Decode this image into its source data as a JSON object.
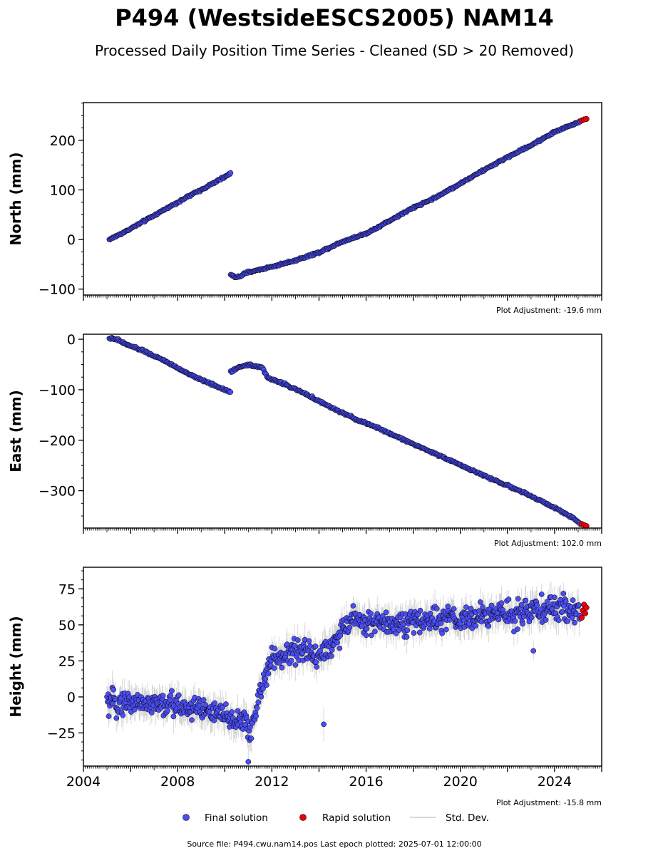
{
  "title": "P494 (WestsideESCS2005) NAM14",
  "subtitle": "Processed Daily Position Time Series - Cleaned (SD > 20 Removed)",
  "footer": "Source file: P494.cwu.nam14.pos  Last epoch plotted: 2025-07-01 12:00:00",
  "legend": {
    "final_label": "Final solution",
    "rapid_label": "Rapid solution",
    "std_label": "Std. Dev."
  },
  "colors": {
    "final_fill": "#4b4df2",
    "rapid_fill": "#e8000b",
    "std_dev": "#b8b8b8",
    "marker_edge": "#000000"
  },
  "chart_data": [
    {
      "type": "scatter",
      "ylabel": "North (mm)",
      "adjustment_note": "Plot Adjustment: -19.6 mm",
      "xlim": [
        2004,
        2026
      ],
      "ylim": [
        -112,
        276
      ],
      "yticks": [
        -100,
        0,
        100,
        200
      ],
      "ytick_labels": [
        "−100",
        "0",
        "100",
        "200"
      ],
      "series": [
        {
          "segments": [
            {
              "x": [
                2005.1,
                2005.7,
                2006.5,
                2007.5,
                2008.5,
                2009.5,
                2010.25
              ],
              "y": [
                0,
                14,
                35,
                62,
                88,
                113,
                133
              ]
            },
            {
              "x": [
                2010.25,
                2010.5,
                2011.0,
                2012.0,
                2013.0,
                2014.0,
                2015.0,
                2016.0,
                2017.0,
                2018.0,
                2019.0,
                2020.0,
                2021.0,
                2022.0,
                2023.0,
                2024.0,
                2025.1
              ],
              "y": [
                -70,
                -77,
                -66,
                -55,
                -42,
                -26,
                -4,
                12,
                38,
                64,
                86,
                113,
                140,
                166,
                190,
                217,
                238
              ]
            }
          ]
        },
        {
          "x": [
            2025.15,
            2025.25,
            2025.35
          ],
          "y": [
            240,
            242,
            243
          ]
        }
      ]
    },
    {
      "type": "scatter",
      "ylabel": "East (mm)",
      "adjustment_note": "Plot Adjustment: 102.0 mm",
      "xlim": [
        2004,
        2026
      ],
      "ylim": [
        -374,
        10
      ],
      "yticks": [
        -300,
        -200,
        -100,
        0
      ],
      "ytick_labels": [
        "−300",
        "−200",
        "−100",
        "0"
      ],
      "series": [
        {
          "segments": [
            {
              "x": [
                2005.1,
                2005.5,
                2005.8,
                2006.5,
                2007.5,
                2008.5,
                2009.5,
                2010.25
              ],
              "y": [
                2,
                -2,
                -10,
                -22,
                -44,
                -70,
                -90,
                -105
              ]
            },
            {
              "x": [
                2010.25,
                2010.6,
                2011.0,
                2011.6,
                2011.8,
                2012.5,
                2013.5,
                2014.5,
                2015.5,
                2016.5,
                2017.5,
                2018.5,
                2019.5,
                2020.5,
                2021.5,
                2022.5,
                2023.5,
                2024.5,
                2025.1
              ],
              "y": [
                -65,
                -55,
                -50,
                -56,
                -76,
                -88,
                -110,
                -135,
                -157,
                -176,
                -197,
                -218,
                -238,
                -260,
                -280,
                -300,
                -322,
                -346,
                -365
              ]
            }
          ]
        },
        {
          "x": [
            2025.15,
            2025.25,
            2025.35
          ],
          "y": [
            -366,
            -368,
            -370
          ]
        }
      ]
    },
    {
      "type": "scatter",
      "ylabel": "Height (mm)",
      "adjustment_note": "Plot Adjustment: -15.8 mm",
      "xlim": [
        2004,
        2026
      ],
      "ylim": [
        -48,
        90
      ],
      "yticks": [
        -25,
        0,
        25,
        50,
        75
      ],
      "ytick_labels": [
        "−25",
        "0",
        "25",
        "50",
        "75"
      ],
      "xticks": [
        2004,
        2008,
        2012,
        2016,
        2020,
        2024
      ],
      "xtick_labels": [
        "2004",
        "2008",
        "2012",
        "2016",
        "2020",
        "2024"
      ],
      "series": [
        {
          "segments": [
            {
              "x": [
                2005.0,
                2006.0,
                2007.0,
                2008.0,
                2009.0,
                2010.0,
                2010.8,
                2011.1,
                2011.5,
                2012.0,
                2013.0,
                2014.0,
                2014.5,
                2015.0,
                2015.5,
                2016.0,
                2017.0,
                2018.0,
                2019.0,
                2020.0,
                2021.0,
                2022.0,
                2023.0,
                2024.0,
                2025.1
              ],
              "y": [
                -5,
                -3,
                -5,
                -6,
                -8,
                -14,
                -17,
                -25,
                5,
                25,
                32,
                30,
                35,
                45,
                57,
                50,
                52,
                52,
                54,
                53,
                56,
                58,
                60,
                61,
                60
              ]
            }
          ],
          "scatter_mm": 6,
          "outliers": {
            "x": [
              2014.2,
              2023.1,
              2011.0
            ],
            "y": [
              -19,
              32,
              -45
            ]
          }
        },
        {
          "x": [
            2025.15,
            2025.2,
            2025.25,
            2025.3,
            2025.35
          ],
          "y": [
            55,
            60,
            64,
            58,
            62
          ]
        }
      ]
    }
  ]
}
